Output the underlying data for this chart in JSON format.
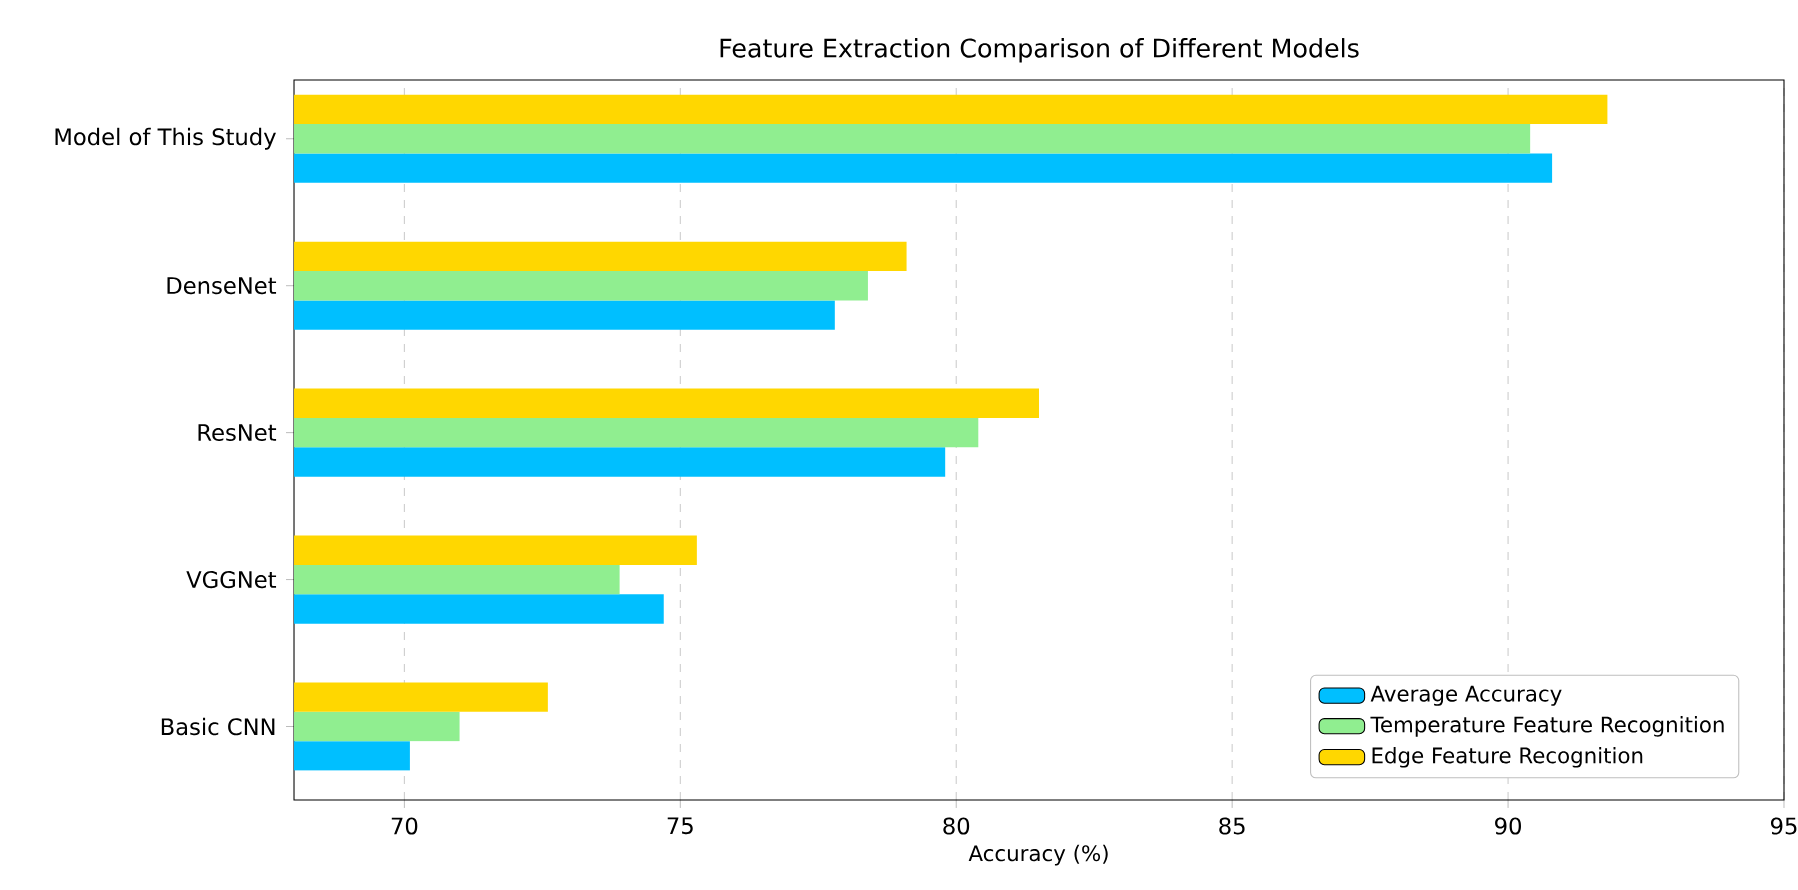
{
  "chart_data": {
    "type": "bar",
    "orientation": "horizontal",
    "title": "Feature Extraction Comparison of Different Models",
    "xlabel": "Accuracy (%)",
    "categories": [
      "Model of This Study",
      "DenseNet",
      "ResNet",
      "VGGNet",
      "Basic CNN"
    ],
    "series": [
      {
        "name": "Average Accuracy",
        "color": "#00bfff",
        "values": [
          90.8,
          77.8,
          79.8,
          74.7,
          70.1
        ]
      },
      {
        "name": "Temperature Feature Recognition",
        "color": "#90ee90",
        "values": [
          90.4,
          78.4,
          80.4,
          73.9,
          71.0
        ]
      },
      {
        "name": "Edge Feature Recognition",
        "color": "#ffd700",
        "values": [
          91.8,
          79.1,
          81.5,
          75.3,
          72.6
        ]
      }
    ],
    "xlim": [
      68,
      95
    ],
    "xticks": [
      70,
      75,
      80,
      85,
      90,
      95
    ],
    "grid": "x",
    "legend": "bottom right"
  }
}
